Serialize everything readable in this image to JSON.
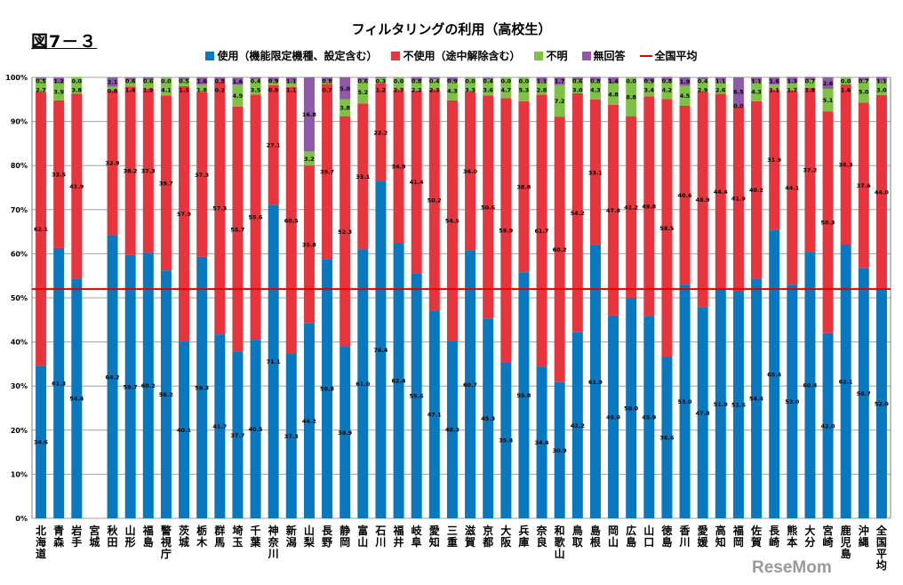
{
  "figure_label": "図7－３",
  "watermark": "ReseMom",
  "chart_data": {
    "type": "bar",
    "stacked": true,
    "title": "フィルタリングの利用（高校生）",
    "xlabel": "",
    "ylabel": "",
    "ylim": [
      0,
      100
    ],
    "yticks": [
      "0%",
      "10%",
      "20%",
      "30%",
      "40%",
      "50%",
      "60%",
      "70%",
      "80%",
      "90%",
      "100%"
    ],
    "grid": true,
    "legend_position": "top",
    "categories": [
      "北海道",
      "青森",
      "岩手",
      "宮城",
      "秋田",
      "山形",
      "福島",
      "警視庁",
      "茨城",
      "栃木",
      "群馬",
      "埼玉",
      "千葉",
      "神奈川",
      "新潟",
      "山梨",
      "長野",
      "静岡",
      "富山",
      "石川",
      "福井",
      "岐阜",
      "愛知",
      "三重",
      "滋賀",
      "京都",
      "大阪",
      "兵庫",
      "奈良",
      "和歌山",
      "鳥取",
      "島根",
      "岡山",
      "広島",
      "山口",
      "徳島",
      "香川",
      "愛媛",
      "高知",
      "福岡",
      "佐賀",
      "長崎",
      "熊本",
      "大分",
      "宮崎",
      "鹿児島",
      "沖縄",
      "全国平均"
    ],
    "series": [
      {
        "name": "使用（機能限定機種、設定含む）",
        "color": "#0878c0",
        "values": [
          34.6,
          61.3,
          54.4,
          null,
          64.2,
          59.7,
          60.2,
          56.2,
          40.1,
          59.3,
          41.7,
          37.7,
          40.5,
          71.1,
          37.3,
          44.2,
          58.8,
          38.9,
          61.0,
          76.4,
          62.4,
          55.6,
          47.1,
          40.3,
          60.7,
          45.3,
          35.4,
          55.8,
          34.4,
          30.9,
          42.2,
          61.9,
          46.0,
          50.0,
          45.9,
          36.6,
          53.0,
          47.8,
          51.9,
          51.6,
          54.4,
          65.4,
          53.0,
          60.4,
          42.0,
          62.1,
          56.7,
          52.0
        ]
      },
      {
        "name": "不使用（途中解除含む）",
        "color": "#e8343c",
        "values": [
          62.1,
          33.5,
          41.9,
          null,
          32.9,
          38.2,
          37.3,
          39.7,
          57.9,
          37.3,
          57.3,
          55.7,
          55.6,
          27.1,
          60.5,
          35.8,
          39.7,
          52.3,
          33.1,
          22.2,
          34.9,
          41.4,
          50.2,
          54.5,
          36.0,
          50.6,
          59.9,
          38.8,
          61.7,
          60.2,
          54.2,
          33.1,
          47.8,
          41.2,
          49.8,
          58.5,
          40.6,
          48.9,
          44.4,
          41.9,
          40.2,
          31.9,
          44.1,
          37.2,
          50.3,
          36.3,
          37.6,
          44.0
        ]
      },
      {
        "name": "不明",
        "color": "#7dc242",
        "values": [
          2.7,
          3.9,
          3.8,
          null,
          0.8,
          1.4,
          1.9,
          4.1,
          1.5,
          1.8,
          0.2,
          4.9,
          3.5,
          0.9,
          1.1,
          3.2,
          0.7,
          3.8,
          5.2,
          1.2,
          2.7,
          2.3,
          2.3,
          4.3,
          3.3,
          3.6,
          4.7,
          5.3,
          2.8,
          7.2,
          3.0,
          4.3,
          4.8,
          8.8,
          3.4,
          4.2,
          4.5,
          2.9,
          2.6,
          0.0,
          4.3,
          1.1,
          1.7,
          1.8,
          5.1,
          1.6,
          5.0,
          3.0
        ]
      },
      {
        "name": "無回答",
        "color": "#9058a8",
        "values": [
          0.5,
          1.2,
          0.0,
          null,
          2.1,
          0.6,
          0.6,
          0.0,
          0.5,
          1.6,
          0.8,
          1.6,
          0.4,
          0.9,
          1.1,
          16.8,
          0.8,
          5.0,
          0.6,
          0.3,
          0.0,
          0.8,
          0.4,
          0.9,
          0.0,
          0.4,
          0.0,
          0.0,
          1.1,
          1.7,
          0.6,
          0.8,
          1.4,
          0.0,
          0.9,
          0.8,
          1.9,
          0.4,
          1.1,
          6.5,
          1.1,
          1.6,
          1.3,
          0.7,
          2.6,
          0.0,
          0.7,
          1.1
        ]
      }
    ],
    "reference_line": {
      "name": "全国平均",
      "value": 52.0,
      "color": "#e00000"
    }
  }
}
